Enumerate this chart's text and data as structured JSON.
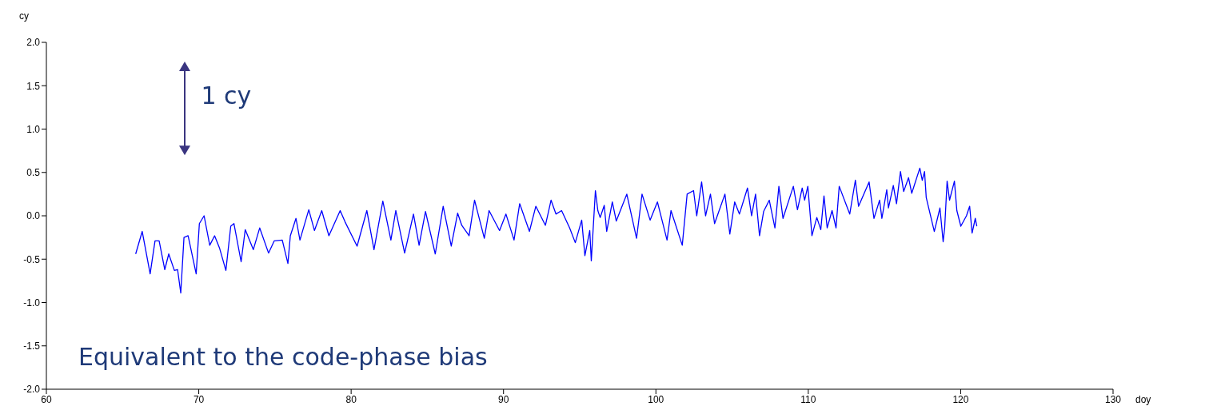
{
  "chart_data": {
    "type": "line",
    "xlabel": "doy",
    "ylabel": "cy",
    "annotations": [
      "1 cy",
      "Equivalent to the code-phase bias"
    ],
    "x": [
      65.86,
      66.29,
      66.81,
      67.13,
      67.4,
      67.77,
      68.03,
      68.4,
      68.61,
      68.82,
      69.03,
      69.3,
      69.83,
      70.04,
      70.35,
      70.72,
      71.04,
      71.36,
      71.78,
      72.1,
      72.31,
      72.78,
      73.05,
      73.58,
      74.0,
      74.58,
      74.95,
      75.48,
      75.85,
      76.01,
      76.38,
      76.64,
      77.22,
      77.59,
      78.07,
      78.54,
      79.28,
      79.6,
      80.39,
      81.03,
      81.5,
      82.08,
      82.61,
      82.93,
      83.51,
      84.09,
      84.46,
      84.88,
      85.52,
      86.04,
      86.57,
      86.99,
      87.26,
      87.74,
      88.1,
      88.74,
      89.05,
      89.74,
      90.16,
      90.69,
      91.06,
      91.7,
      92.12,
      92.75,
      93.12,
      93.44,
      93.81,
      94.34,
      94.71,
      95.13,
      95.34,
      95.66,
      95.76,
      96.03,
      96.19,
      96.34,
      96.61,
      96.77,
      97.14,
      97.4,
      98.09,
      98.73,
      99.09,
      99.62,
      100.1,
      100.73,
      100.99,
      101.73,
      102.05,
      102.47,
      102.68,
      103.0,
      103.26,
      103.58,
      103.85,
      104.53,
      104.85,
      105.17,
      105.48,
      106.01,
      106.28,
      106.54,
      106.8,
      107.07,
      107.44,
      107.81,
      108.07,
      108.34,
      109.02,
      109.29,
      109.6,
      109.76,
      109.97,
      110.24,
      110.56,
      110.82,
      111.03,
      111.24,
      111.56,
      111.82,
      112.03,
      112.72,
      113.09,
      113.3,
      113.99,
      114.31,
      114.68,
      114.83,
      115.15,
      115.26,
      115.58,
      115.79,
      116.05,
      116.26,
      116.58,
      116.79,
      117.32,
      117.48,
      117.63,
      117.74,
      118.27,
      118.64,
      118.85,
      118.95,
      119.11,
      119.27,
      119.59,
      119.75,
      120.01,
      120.38,
      120.59,
      120.75,
      120.96,
      121.06
    ],
    "series": [
      {
        "color": "#0000ff",
        "values": [
          -0.44,
          -0.18,
          -0.67,
          -0.29,
          -0.29,
          -0.62,
          -0.44,
          -0.63,
          -0.62,
          -0.89,
          -0.25,
          -0.23,
          -0.67,
          -0.09,
          0.0,
          -0.34,
          -0.23,
          -0.37,
          -0.63,
          -0.12,
          -0.09,
          -0.53,
          -0.16,
          -0.39,
          -0.14,
          -0.43,
          -0.29,
          -0.28,
          -0.55,
          -0.23,
          -0.03,
          -0.28,
          0.07,
          -0.17,
          0.06,
          -0.23,
          0.06,
          -0.07,
          -0.35,
          0.06,
          -0.39,
          0.17,
          -0.28,
          0.06,
          -0.43,
          0.02,
          -0.34,
          0.05,
          -0.44,
          0.11,
          -0.35,
          0.03,
          -0.11,
          -0.23,
          0.18,
          -0.26,
          0.06,
          -0.17,
          0.02,
          -0.28,
          0.14,
          -0.18,
          0.11,
          -0.11,
          0.18,
          0.02,
          0.06,
          -0.14,
          -0.31,
          -0.05,
          -0.46,
          -0.17,
          -0.52,
          0.29,
          0.06,
          -0.02,
          0.12,
          -0.18,
          0.16,
          -0.06,
          0.25,
          -0.26,
          0.25,
          -0.05,
          0.16,
          -0.28,
          0.06,
          -0.34,
          0.25,
          0.29,
          0.0,
          0.39,
          0.0,
          0.25,
          -0.09,
          0.25,
          -0.21,
          0.16,
          0.02,
          0.32,
          0.0,
          0.25,
          -0.23,
          0.05,
          0.18,
          -0.14,
          0.34,
          -0.03,
          0.34,
          0.07,
          0.32,
          0.18,
          0.34,
          -0.23,
          -0.02,
          -0.16,
          0.23,
          -0.14,
          0.06,
          -0.14,
          0.34,
          0.02,
          0.41,
          0.11,
          0.39,
          -0.03,
          0.18,
          -0.03,
          0.3,
          0.09,
          0.35,
          0.14,
          0.51,
          0.28,
          0.44,
          0.26,
          0.55,
          0.41,
          0.51,
          0.21,
          -0.18,
          0.09,
          -0.3,
          -0.14,
          0.4,
          0.18,
          0.4,
          0.06,
          -0.12,
          0.0,
          0.11,
          -0.2,
          -0.03,
          -0.12
        ]
      }
    ],
    "xlim": [
      60,
      130
    ],
    "xticks": [
      60,
      70,
      80,
      90,
      100,
      110,
      120,
      130
    ],
    "ylim": [
      -2,
      2
    ],
    "yticks": [
      {
        "value": -2,
        "label": "-2.0"
      },
      {
        "value": -1.5,
        "label": "-1.5"
      },
      {
        "value": -1,
        "label": "-1.0"
      },
      {
        "value": -0.5,
        "label": "-0.5"
      },
      {
        "value": 0,
        "label": "0.0"
      },
      {
        "value": 0.5,
        "label": "0.5"
      },
      {
        "value": 1,
        "label": "1.0"
      },
      {
        "value": 1.5,
        "label": "1.5"
      },
      {
        "value": 2,
        "label": "2.0"
      }
    ],
    "grid": false,
    "marker": "none",
    "line_style": "solid"
  }
}
